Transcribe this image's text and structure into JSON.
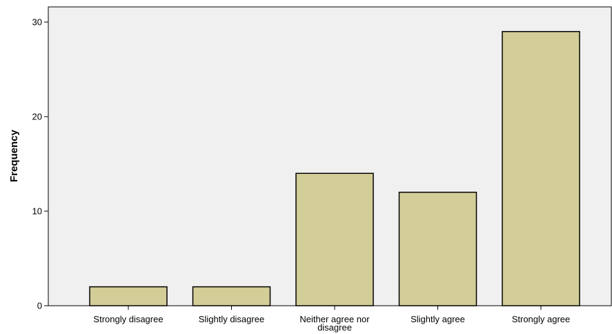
{
  "chart_data": {
    "type": "bar",
    "title": "",
    "xlabel": "",
    "ylabel": "Frequency",
    "categories": [
      "Strongly disagree",
      "Slightly disagree",
      "Neither agree nor disagree",
      "Slightly agree",
      "Strongly agree"
    ],
    "category_lines": [
      [
        "Strongly disagree"
      ],
      [
        "Slightly disagree"
      ],
      [
        "Neither agree nor",
        "disagree"
      ],
      [
        "Slightly agree"
      ],
      [
        "Strongly agree"
      ]
    ],
    "values": [
      2,
      2,
      14,
      12,
      29
    ],
    "ylim": [
      0,
      30
    ],
    "yticks": [
      0,
      10,
      20,
      30
    ],
    "grid": false,
    "legend": "none",
    "colors": {
      "bar_fill": "#d3cd97",
      "bar_stroke": "#000000",
      "plot_background": "#f0f0f0"
    }
  }
}
